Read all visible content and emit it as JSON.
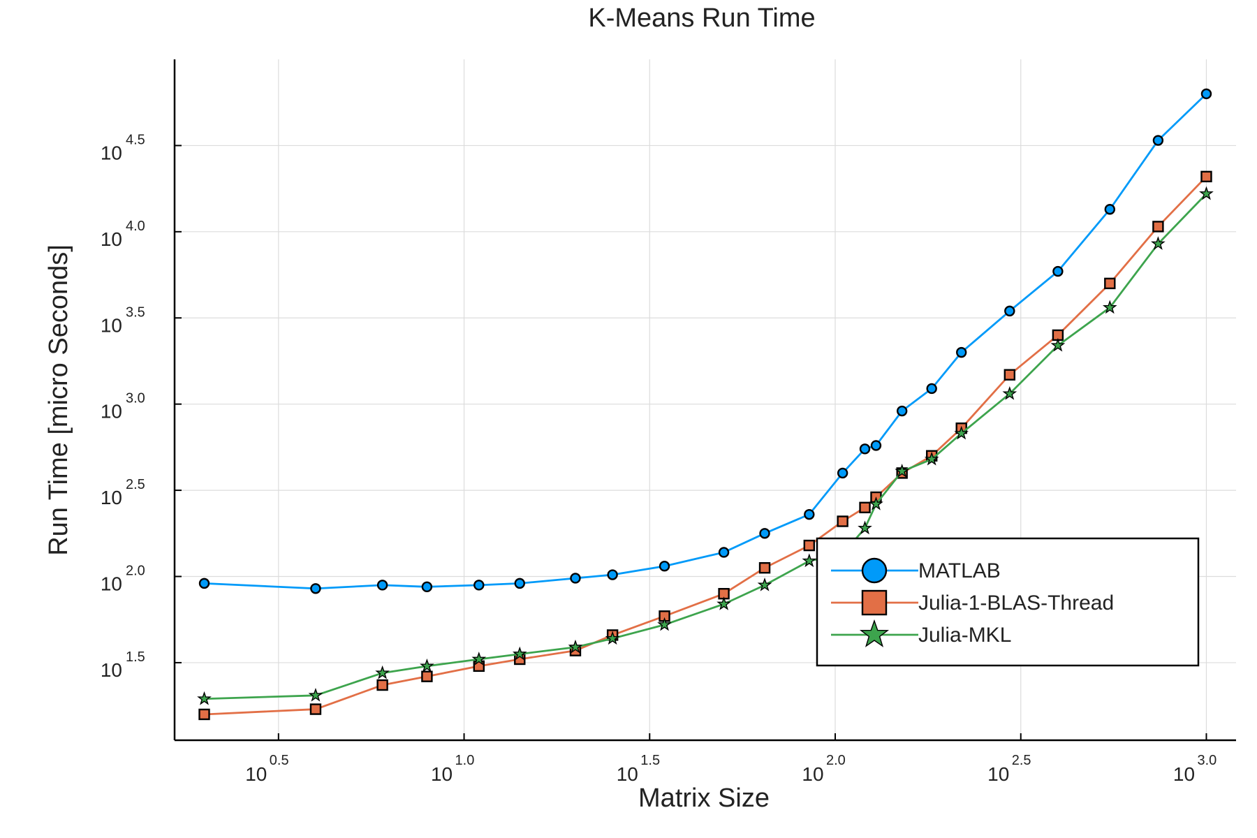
{
  "chart_data": {
    "type": "line",
    "title": "K-Means Run Time",
    "xlabel": "Matrix Size",
    "ylabel": "Run Time  [micro Seconds]",
    "xscale": "log10",
    "yscale": "log10",
    "xlim_log10": [
      0.22,
      3.08
    ],
    "ylim_log10": [
      1.05,
      5.0
    ],
    "x_ticks": [
      {
        "base": "10",
        "exp": "0.5",
        "log10": 0.5
      },
      {
        "base": "10",
        "exp": "1.0",
        "log10": 1.0
      },
      {
        "base": "10",
        "exp": "1.5",
        "log10": 1.5
      },
      {
        "base": "10",
        "exp": "2.0",
        "log10": 2.0
      },
      {
        "base": "10",
        "exp": "2.5",
        "log10": 2.5
      },
      {
        "base": "10",
        "exp": "3.0",
        "log10": 3.0
      }
    ],
    "y_ticks": [
      {
        "base": "10",
        "exp": "1.5",
        "log10": 1.5
      },
      {
        "base": "10",
        "exp": "2.0",
        "log10": 2.0
      },
      {
        "base": "10",
        "exp": "2.5",
        "log10": 2.5
      },
      {
        "base": "10",
        "exp": "3.0",
        "log10": 3.0
      },
      {
        "base": "10",
        "exp": "3.5",
        "log10": 3.5
      },
      {
        "base": "10",
        "exp": "4.0",
        "log10": 4.0
      },
      {
        "base": "10",
        "exp": "4.5",
        "log10": 4.5
      }
    ],
    "grid": true,
    "legend_position": "right",
    "series": [
      {
        "name": "MATLAB",
        "color": "#009af9",
        "marker": "circle",
        "points": [
          [
            0.3,
            1.96
          ],
          [
            0.6,
            1.93
          ],
          [
            0.78,
            1.95
          ],
          [
            0.9,
            1.94
          ],
          [
            1.04,
            1.95
          ],
          [
            1.15,
            1.96
          ],
          [
            1.3,
            1.99
          ],
          [
            1.4,
            2.01
          ],
          [
            1.54,
            2.06
          ],
          [
            1.7,
            2.14
          ],
          [
            1.81,
            2.25
          ],
          [
            1.93,
            2.36
          ],
          [
            2.02,
            2.6
          ],
          [
            2.08,
            2.74
          ],
          [
            2.11,
            2.76
          ],
          [
            2.18,
            2.96
          ],
          [
            2.26,
            3.09
          ],
          [
            2.34,
            3.3
          ],
          [
            2.47,
            3.54
          ],
          [
            2.6,
            3.77
          ],
          [
            2.74,
            4.13
          ],
          [
            2.87,
            4.53
          ],
          [
            3.0,
            4.8
          ]
        ]
      },
      {
        "name": "Julia-1-BLAS-Thread",
        "color": "#e26f46",
        "marker": "square",
        "points": [
          [
            0.3,
            1.2
          ],
          [
            0.6,
            1.23
          ],
          [
            0.78,
            1.37
          ],
          [
            0.9,
            1.42
          ],
          [
            1.04,
            1.48
          ],
          [
            1.15,
            1.52
          ],
          [
            1.3,
            1.57
          ],
          [
            1.4,
            1.66
          ],
          [
            1.54,
            1.77
          ],
          [
            1.7,
            1.9
          ],
          [
            1.81,
            2.05
          ],
          [
            1.93,
            2.18
          ],
          [
            2.02,
            2.32
          ],
          [
            2.08,
            2.4
          ],
          [
            2.11,
            2.46
          ],
          [
            2.18,
            2.6
          ],
          [
            2.26,
            2.7
          ],
          [
            2.34,
            2.86
          ],
          [
            2.47,
            3.17
          ],
          [
            2.6,
            3.4
          ],
          [
            2.74,
            3.7
          ],
          [
            2.87,
            4.03
          ],
          [
            3.0,
            4.32
          ]
        ]
      },
      {
        "name": "Julia-MKL",
        "color": "#3da44d",
        "marker": "star",
        "points": [
          [
            0.3,
            1.29
          ],
          [
            0.6,
            1.31
          ],
          [
            0.78,
            1.44
          ],
          [
            0.9,
            1.48
          ],
          [
            1.04,
            1.52
          ],
          [
            1.15,
            1.55
          ],
          [
            1.3,
            1.59
          ],
          [
            1.4,
            1.64
          ],
          [
            1.54,
            1.72
          ],
          [
            1.7,
            1.84
          ],
          [
            1.81,
            1.95
          ],
          [
            1.93,
            2.09
          ],
          [
            2.02,
            2.13
          ],
          [
            2.08,
            2.28
          ],
          [
            2.11,
            2.42
          ],
          [
            2.18,
            2.61
          ],
          [
            2.26,
            2.68
          ],
          [
            2.34,
            2.83
          ],
          [
            2.47,
            3.06
          ],
          [
            2.6,
            3.34
          ],
          [
            2.74,
            3.56
          ],
          [
            2.87,
            3.93
          ],
          [
            3.0,
            4.22
          ]
        ]
      }
    ]
  }
}
